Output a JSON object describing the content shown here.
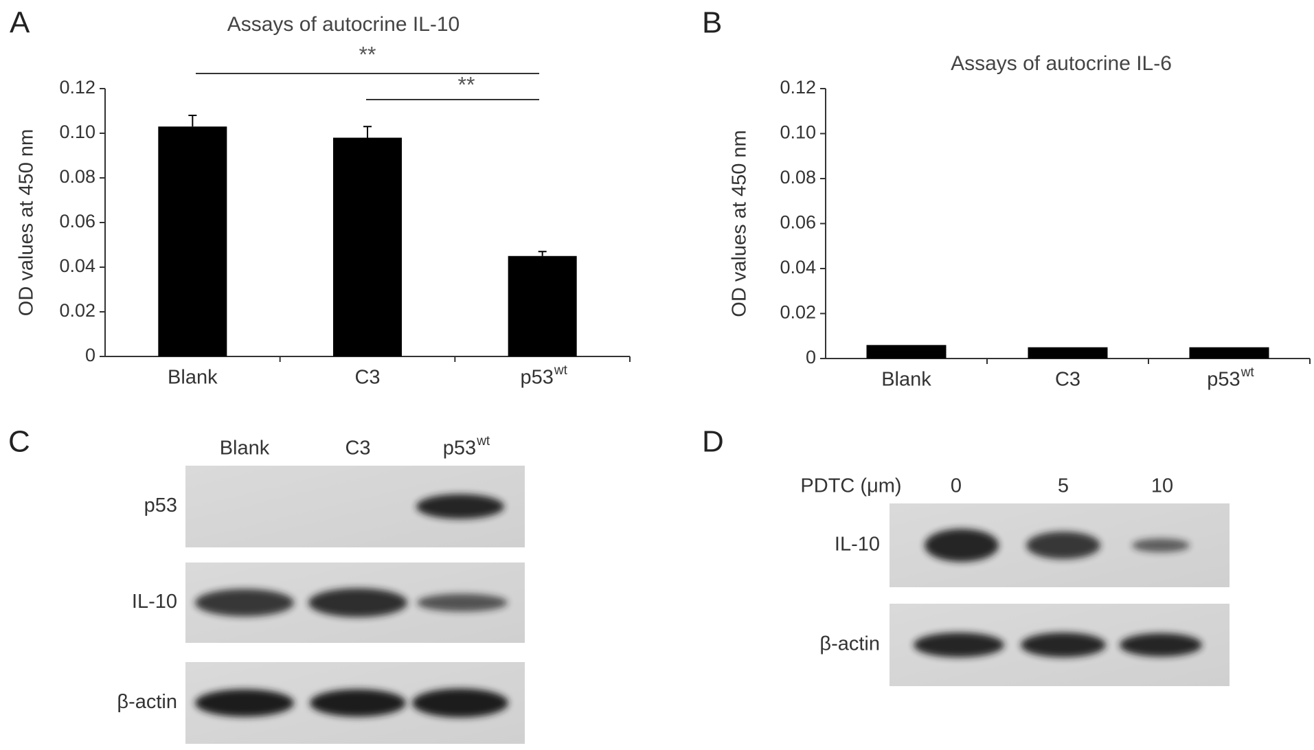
{
  "panels": [
    "A",
    "B",
    "C",
    "D"
  ],
  "chart_data": [
    {
      "type": "bar",
      "title": "Assays of autocrine IL-10",
      "y_label": "OD values at 450 nm",
      "categories": [
        "Blank",
        "C3",
        "p53"
      ],
      "category_superscripts": [
        null,
        null,
        "wt"
      ],
      "values": [
        0.103,
        0.098,
        0.045
      ],
      "errors": [
        0.005,
        0.005,
        0.002
      ],
      "color": "#000000",
      "ylim": [
        0,
        0.12
      ],
      "yticks": [
        0,
        0.02,
        0.04,
        0.06,
        0.08,
        {
          "value": 0.1,
          "label": "0.10"
        },
        0.12
      ],
      "annotations": [
        "**",
        "**"
      ]
    },
    {
      "type": "bar",
      "title": "Assays of autocrine IL-6",
      "y_label": "OD values at 450 nm",
      "categories": [
        "Blank",
        "C3",
        "p53"
      ],
      "category_superscripts": [
        null,
        null,
        "wt"
      ],
      "values": [
        0.006,
        0.005,
        0.005
      ],
      "color": "#000000",
      "ylim": [
        0,
        0.12
      ],
      "yticks": [
        0,
        0.02,
        0.04,
        0.06,
        0.08,
        {
          "value": 0.1,
          "label": "0.10"
        },
        0.12
      ]
    }
  ],
  "blots": [
    {
      "lanes": [
        "Blank",
        "C3",
        "p53"
      ],
      "lane_superscripts": [
        null,
        null,
        "wt"
      ],
      "rows": [
        "p53",
        "IL-10",
        "β-actin"
      ]
    },
    {
      "header": "PDTC (μm)",
      "lanes": [
        "0",
        "5",
        "10"
      ],
      "rows": [
        "IL-10",
        "β-actin"
      ]
    }
  ]
}
